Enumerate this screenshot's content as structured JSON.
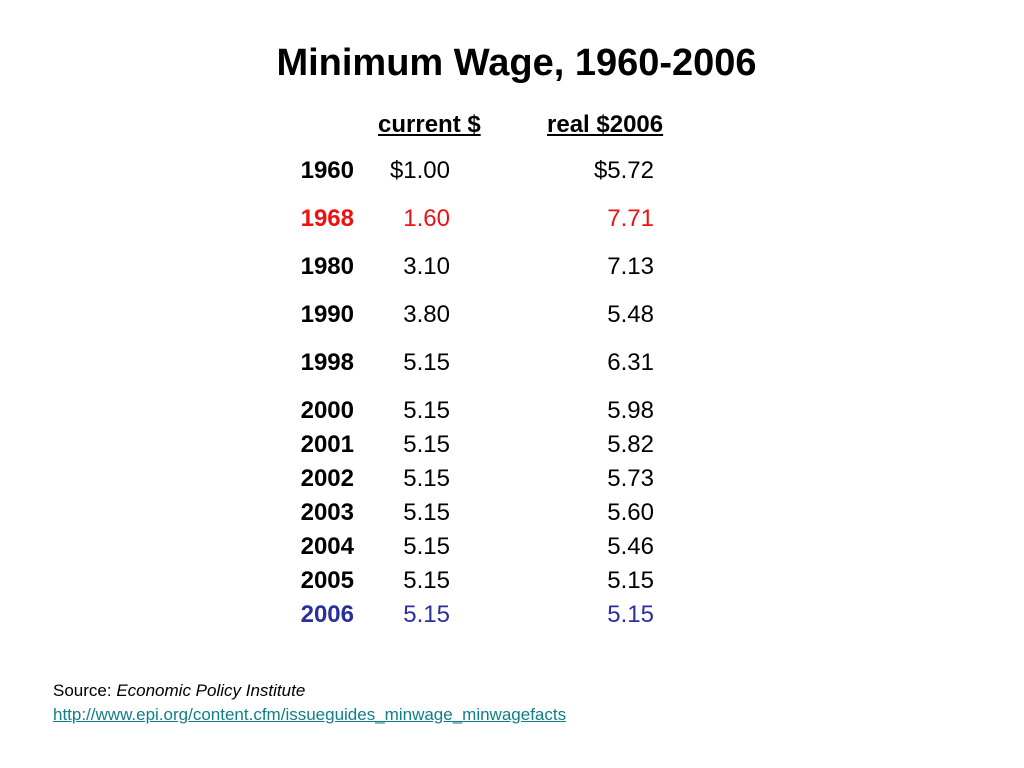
{
  "title": "Minimum Wage, 1960-2006",
  "columns": {
    "current": "current $",
    "real": "real $2006"
  },
  "rows": [
    {
      "year": "1960",
      "current": "$1.00",
      "real": "$5.72"
    },
    {
      "year": "1968",
      "current": "1.60",
      "real": "7.71"
    },
    {
      "year": "1980",
      "current": "3.10",
      "real": "7.13"
    },
    {
      "year": "1990",
      "current": "3.80",
      "real": "5.48"
    },
    {
      "year": "1998",
      "current": "5.15",
      "real": "6.31"
    },
    {
      "year": "2000",
      "current": "5.15",
      "real": "5.98"
    },
    {
      "year": "2001",
      "current": "5.15",
      "real": "5.82"
    },
    {
      "year": "2002",
      "current": "5.15",
      "real": "5.73"
    },
    {
      "year": "2003",
      "current": "5.15",
      "real": "5.60"
    },
    {
      "year": "2004",
      "current": "5.15",
      "real": "5.46"
    },
    {
      "year": "2005",
      "current": "5.15",
      "real": "5.15"
    },
    {
      "year": "2006",
      "current": "5.15",
      "real": "5.15"
    }
  ],
  "highlight_colors": {
    "1968": "#ee1111",
    "2006": "#2a2f9e"
  },
  "source": {
    "label": "Source: ",
    "name": "Economic Policy Institute",
    "url": "http://www.epi.org/content.cfm/issueguides_minwage_minwagefacts",
    "link_color": "#0f7f86"
  }
}
